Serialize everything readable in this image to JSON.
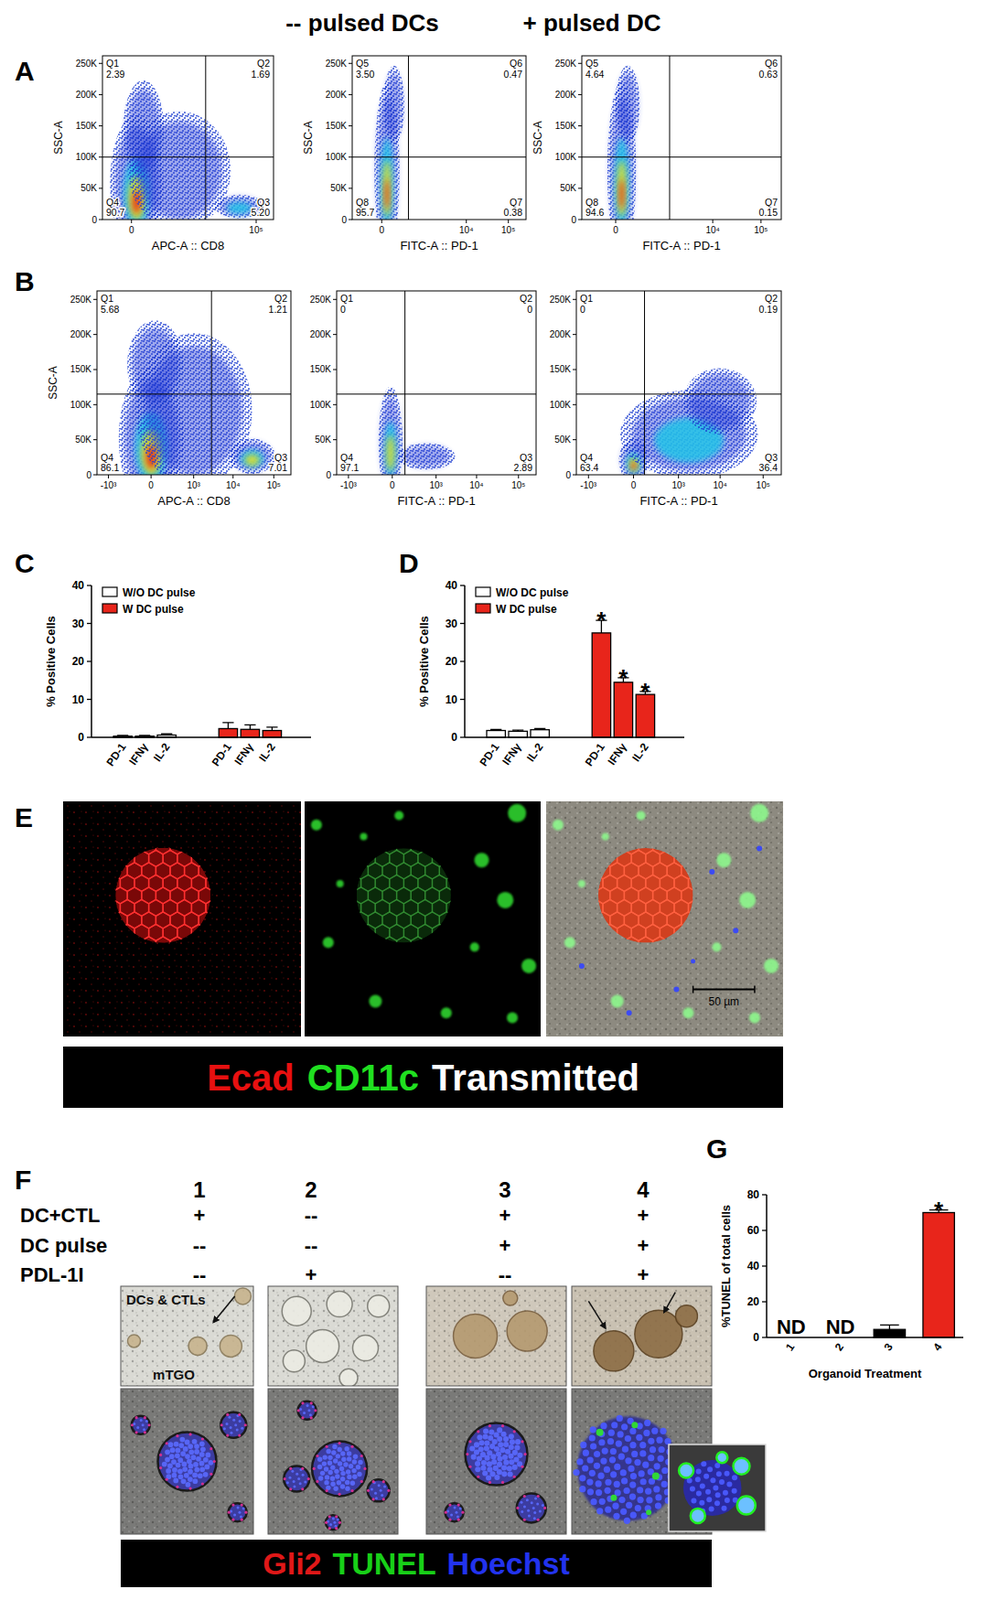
{
  "header": {
    "labels": [
      "-- pulsed DCs",
      "+ pulsed DC"
    ]
  },
  "panel_letters": [
    "A",
    "B",
    "C",
    "D",
    "E",
    "F",
    "G"
  ],
  "chart_data": [
    {
      "type": "quadrant",
      "x_label": "APC-A :: CD8",
      "y_label": "SSC-A",
      "xlim": [
        -400,
        262144
      ],
      "ylim": [
        0,
        262144
      ],
      "xticks": [
        0,
        {
          "value": 100000,
          "label": "10⁵"
        }
      ],
      "yticks": [
        0,
        {
          "value": 50000,
          "label": "50K"
        },
        {
          "value": 100000,
          "label": "100K"
        },
        {
          "value": 150000,
          "label": "150K"
        },
        {
          "value": 200000,
          "label": "200K"
        },
        {
          "value": 250000,
          "label": "250K"
        }
      ],
      "gate_x": 6000,
      "gate_y": 100000,
      "quadrants": {
        "names": [
          "Q1",
          "Q2",
          "Q3",
          "Q4"
        ],
        "values": [
          2.39,
          1.69,
          5.2,
          90.7
        ],
        "value_labels": [
          "2.39",
          "1.69",
          "5.20",
          "90.7"
        ]
      }
    },
    {
      "type": "quadrant",
      "x_label": "FITC-A :: PD-1",
      "y_label": "SSC-A",
      "xlim": [
        -400,
        262144
      ],
      "ylim": [
        0,
        262144
      ],
      "xticks": [
        0,
        {
          "value": 10000,
          "label": "10⁴"
        },
        {
          "value": 100000,
          "label": "10⁵"
        }
      ],
      "yticks": [
        0,
        {
          "value": 50000,
          "label": "50K"
        },
        {
          "value": 100000,
          "label": "100K"
        },
        {
          "value": 150000,
          "label": "150K"
        },
        {
          "value": 200000,
          "label": "200K"
        },
        {
          "value": 250000,
          "label": "250K"
        }
      ],
      "gate_x": 330,
      "gate_y": 100000,
      "quadrants": {
        "names": [
          "Q5",
          "Q6",
          "Q7",
          "Q8"
        ],
        "values": [
          3.5,
          0.47,
          0.38,
          95.7
        ],
        "value_labels": [
          "3.50",
          "0.47",
          "0.38",
          "95.7"
        ]
      }
    },
    {
      "type": "quadrant",
      "x_label": "FITC-A :: PD-1",
      "y_label": "SSC-A",
      "xlim": [
        -400,
        262144
      ],
      "ylim": [
        0,
        262144
      ],
      "xticks": [
        0,
        {
          "value": 10000,
          "label": "10⁴"
        },
        {
          "value": 100000,
          "label": "10⁵"
        }
      ],
      "yticks": [
        0,
        {
          "value": 50000,
          "label": "50K"
        },
        {
          "value": 100000,
          "label": "100K"
        },
        {
          "value": 150000,
          "label": "150K"
        },
        {
          "value": 200000,
          "label": "200K"
        },
        {
          "value": 250000,
          "label": "250K"
        }
      ],
      "gate_x": 1200,
      "gate_y": 100000,
      "quadrants": {
        "names": [
          "Q5",
          "Q6",
          "Q7",
          "Q8"
        ],
        "values": [
          4.64,
          0.63,
          0.15,
          94.6
        ],
        "value_labels": [
          "4.64",
          "0.63",
          "0.15",
          "94.6"
        ]
      }
    },
    {
      "type": "quadrant",
      "x_label": "APC-A :: CD8",
      "y_label": "SSC-A",
      "xlim": [
        -2000,
        262144
      ],
      "ylim": [
        0,
        262144
      ],
      "xticks": [
        {
          "value": -1000,
          "label": "-10³"
        },
        0,
        {
          "value": 1000,
          "label": "10³"
        },
        {
          "value": 10000,
          "label": "10⁴"
        },
        {
          "value": 100000,
          "label": "10⁵"
        }
      ],
      "yticks": [
        0,
        {
          "value": 50000,
          "label": "50K"
        },
        {
          "value": 100000,
          "label": "100K"
        },
        {
          "value": 150000,
          "label": "150K"
        },
        {
          "value": 200000,
          "label": "200K"
        },
        {
          "value": 250000,
          "label": "250K"
        }
      ],
      "gate_x": 2900,
      "gate_y": 115000,
      "quadrants": {
        "names": [
          "Q1",
          "Q2",
          "Q3",
          "Q4"
        ],
        "values": [
          5.68,
          1.21,
          7.01,
          86.1
        ],
        "value_labels": [
          "5.68",
          "1.21",
          "7.01",
          "86.1"
        ]
      }
    },
    {
      "type": "quadrant",
      "x_label": "FITC-A :: PD-1",
      "xlim": [
        -2000,
        262144
      ],
      "ylim": [
        0,
        262144
      ],
      "xticks": [
        {
          "value": -1000,
          "label": "-10³"
        },
        0,
        {
          "value": 1000,
          "label": "10³"
        },
        {
          "value": 10000,
          "label": "10⁴"
        },
        {
          "value": 100000,
          "label": "10⁵"
        }
      ],
      "yticks": [
        0,
        {
          "value": 50000,
          "label": "50K"
        },
        {
          "value": 100000,
          "label": "100K"
        },
        {
          "value": 150000,
          "label": "150K"
        },
        {
          "value": 200000,
          "label": "200K"
        },
        {
          "value": 250000,
          "label": "250K"
        }
      ],
      "gate_x": 100,
      "gate_y": 115000,
      "quadrants": {
        "names": [
          "Q1",
          "Q2",
          "Q3",
          "Q4"
        ],
        "values": [
          0,
          0,
          2.89,
          97.1
        ],
        "value_labels": [
          "0",
          "0",
          "2.89",
          "97.1"
        ]
      }
    },
    {
      "type": "quadrant",
      "x_label": "FITC-A :: PD-1",
      "xlim": [
        -2000,
        262144
      ],
      "ylim": [
        0,
        262144
      ],
      "xticks": [
        {
          "value": -1000,
          "label": "-10³"
        },
        0,
        {
          "value": 1000,
          "label": "10³"
        },
        {
          "value": 10000,
          "label": "10⁴"
        },
        {
          "value": 100000,
          "label": "10⁵"
        }
      ],
      "yticks": [
        0,
        {
          "value": 50000,
          "label": "50K"
        },
        {
          "value": 100000,
          "label": "100K"
        },
        {
          "value": 150000,
          "label": "150K"
        },
        {
          "value": 200000,
          "label": "200K"
        },
        {
          "value": 250000,
          "label": "250K"
        }
      ],
      "gate_x": 80,
      "gate_y": 115000,
      "quadrants": {
        "names": [
          "Q1",
          "Q2",
          "Q3",
          "Q4"
        ],
        "values": [
          0,
          0.19,
          36.4,
          63.4
        ],
        "value_labels": [
          "0",
          "0.19",
          "36.4",
          "63.4"
        ]
      }
    },
    {
      "type": "bar",
      "categories": [
        "PD-1",
        "IFNγ",
        "IL-2",
        "PD-1",
        "IFNγ",
        "IL-2"
      ],
      "series": [
        {
          "name": "W/O DC pulse",
          "color": "#ffffff",
          "values": [
            0.3,
            0.3,
            0.6,
            null,
            null,
            null
          ],
          "errors": [
            0.2,
            0.2,
            0.3,
            null,
            null,
            null
          ]
        },
        {
          "name": "W DC pulse",
          "color": "#e8251b",
          "values": [
            null,
            null,
            null,
            2.3,
            2.1,
            1.8
          ],
          "errors": [
            null,
            null,
            null,
            1.6,
            1.2,
            0.9
          ]
        }
      ],
      "y_label": "% Positive Cells",
      "ylim": [
        0,
        40
      ],
      "yticks": [
        0,
        10,
        20,
        30,
        40
      ],
      "legend": "top-left"
    },
    {
      "type": "bar",
      "categories": [
        "PD-1",
        "IFNγ",
        "IL-2",
        "PD-1",
        "IFNγ",
        "IL-2"
      ],
      "series": [
        {
          "name": "W/O DC pulse",
          "color": "#ffffff",
          "values": [
            1.8,
            1.6,
            2.0,
            null,
            null,
            null
          ],
          "errors": [
            0.3,
            0.3,
            0.3,
            null,
            null,
            null
          ]
        },
        {
          "name": "W DC pulse",
          "color": "#e8251b",
          "values": [
            null,
            null,
            null,
            27.5,
            14.5,
            11.3
          ],
          "errors": [
            null,
            null,
            null,
            3.3,
            1.2,
            0.8
          ]
        }
      ],
      "annotations": [
        null,
        null,
        null,
        "*",
        "*",
        "*"
      ],
      "y_label": "% Positive Cells",
      "ylim": [
        0,
        40
      ],
      "yticks": [
        0,
        10,
        20,
        30,
        40
      ],
      "legend": "top-left"
    },
    {
      "type": "bar",
      "categories": [
        "1",
        "2",
        "3",
        "4"
      ],
      "values": [
        null,
        null,
        4.5,
        70
      ],
      "errors": [
        null,
        null,
        2.5,
        1.5
      ],
      "colors": [
        "#000000",
        "#000000",
        "#000000",
        "#e8251b"
      ],
      "annotations": [
        "ND",
        "ND",
        null,
        "*"
      ],
      "x_label": "Organoid Treatment",
      "y_label": "%TUNEL of total cells",
      "ylim": [
        0,
        80
      ],
      "yticks": [
        0,
        20,
        40,
        60,
        80
      ]
    }
  ],
  "panel_e": {
    "labels": [
      {
        "text": "Ecad",
        "color": "#e81010"
      },
      {
        "text": "CD11c",
        "color": "#20e020"
      },
      {
        "text": "Transmitted",
        "color": "#ffffff"
      }
    ],
    "scale_bar": "50 µm"
  },
  "panel_f": {
    "columns": [
      "1",
      "2",
      "3",
      "4"
    ],
    "rows": [
      {
        "label": "DC+CTL",
        "cells": [
          "+",
          "--",
          "+",
          "+"
        ]
      },
      {
        "label": "DC pulse",
        "cells": [
          "--",
          "--",
          "+",
          "+"
        ]
      },
      {
        "label": "PDL-1I",
        "cells": [
          "--",
          "+",
          "--",
          "+"
        ]
      }
    ],
    "image_labels": [
      "DCs & CTLs",
      "mTGO"
    ],
    "stain_labels": [
      {
        "text": "Gli2",
        "color": "#e01818"
      },
      {
        "text": "TUNEL",
        "color": "#18d018"
      },
      {
        "text": "Hoechst",
        "color": "#2233ee"
      }
    ]
  }
}
